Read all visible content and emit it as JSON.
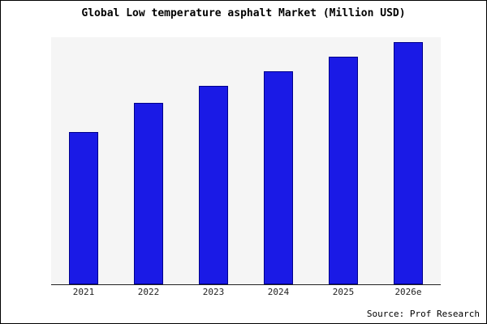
{
  "chart_data": {
    "type": "bar",
    "title": "Global Low temperature asphalt Market (Million USD)",
    "categories": [
      "2021",
      "2022",
      "2023",
      "2024",
      "2025",
      "2026e"
    ],
    "values": [
      63,
      75,
      82,
      88,
      94,
      100
    ],
    "value_note": "no y-axis tick labels shown; values estimated relative to tallest bar = 100",
    "xlabel": "",
    "ylabel": "",
    "ylim": [
      0,
      102
    ],
    "grid": false,
    "legend": false,
    "bar_color": "#1a1ae6",
    "bar_edge_color": "#00008b",
    "plot_background": "#f5f5f5"
  },
  "source_note": "Source: Prof Research"
}
